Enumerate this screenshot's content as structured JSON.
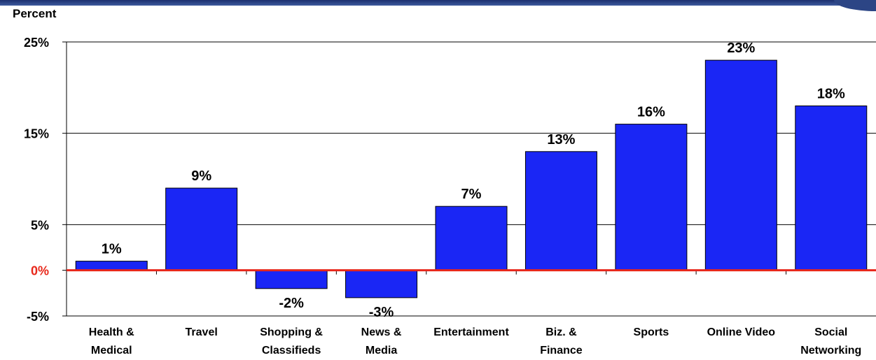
{
  "chart_data": {
    "type": "bar",
    "ylabel": "Percent",
    "ylim": [
      -5,
      25
    ],
    "yticks": [
      {
        "value": 25,
        "label": "25%"
      },
      {
        "value": 15,
        "label": "15%"
      },
      {
        "value": 5,
        "label": "5%"
      },
      {
        "value": 0,
        "label": "0%"
      },
      {
        "value": -5,
        "label": "-5%"
      }
    ],
    "categories": [
      [
        "Health &",
        "Medical"
      ],
      [
        "Travel"
      ],
      [
        "Shopping &",
        "Classifieds"
      ],
      [
        "News &",
        "Media"
      ],
      [
        "Entertainment"
      ],
      [
        "Biz. &",
        "Finance"
      ],
      [
        "Sports"
      ],
      [
        "Online Video"
      ],
      [
        "Social",
        "Networking"
      ]
    ],
    "values": [
      1,
      9,
      -2,
      -3,
      7,
      13,
      16,
      23,
      18
    ],
    "data_labels": [
      "1%",
      "9%",
      "-2%",
      "-3%",
      "7%",
      "13%",
      "16%",
      "23%",
      "18%"
    ],
    "grid": true,
    "colors": {
      "bar": "#1a26f5",
      "bar_edge": "#000000",
      "zero_line": "#e8271a",
      "zero_label": "#e8271a",
      "grid": "#000000"
    }
  }
}
